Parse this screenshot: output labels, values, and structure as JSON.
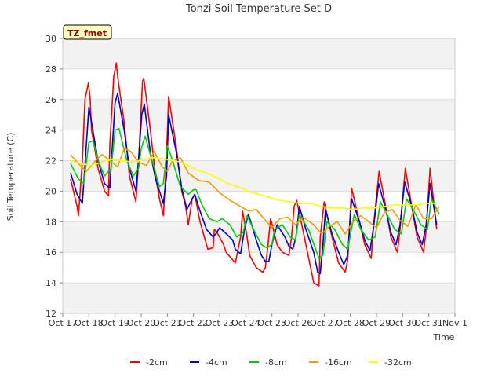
{
  "chart_data": {
    "type": "line",
    "title": "Tonzi Soil Temperature Set D",
    "xlabel": "Time",
    "ylabel": "Soil Temperature (C)",
    "badge": "TZ_fmet",
    "ylim": [
      12,
      30
    ],
    "xlim": [
      17,
      32
    ],
    "y_ticks": [
      12,
      14,
      16,
      18,
      20,
      22,
      24,
      26,
      28,
      30
    ],
    "x_ticks": [
      {
        "v": 17,
        "label": "Oct 17"
      },
      {
        "v": 18,
        "label": "Oct 18"
      },
      {
        "v": 19,
        "label": "Oct 19"
      },
      {
        "v": 20,
        "label": "Oct 20"
      },
      {
        "v": 21,
        "label": "Oct 21"
      },
      {
        "v": 22,
        "label": "Oct 22"
      },
      {
        "v": 23,
        "label": "Oct 23"
      },
      {
        "v": 24,
        "label": "Oct 24"
      },
      {
        "v": 25,
        "label": "Oct 25"
      },
      {
        "v": 26,
        "label": "Oct 26"
      },
      {
        "v": 27,
        "label": "Oct 27"
      },
      {
        "v": 28,
        "label": "Oct 28"
      },
      {
        "v": 29,
        "label": "Oct 29"
      },
      {
        "v": 30,
        "label": "Oct 30"
      },
      {
        "v": 31,
        "label": "Oct 31"
      },
      {
        "v": 32,
        "label": "Nov 1"
      }
    ],
    "grid": true,
    "legend_position": "bottom",
    "series": [
      {
        "name": "-2cm",
        "color": "#ff0000",
        "x": [
          17.3,
          17.55,
          17.6,
          17.75,
          17.85,
          17.98,
          18.05,
          18.1,
          18.35,
          18.6,
          18.75,
          18.8,
          18.95,
          19.05,
          19.1,
          19.35,
          19.55,
          19.8,
          19.9,
          20.05,
          20.1,
          20.35,
          20.55,
          20.7,
          20.85,
          20.95,
          21.05,
          21.35,
          21.55,
          21.7,
          21.8,
          21.95,
          22.05,
          22.25,
          22.5,
          22.55,
          22.75,
          22.8,
          22.9,
          23.15,
          23.25,
          23.5,
          23.6,
          23.8,
          23.88,
          24.05,
          24.15,
          24.4,
          24.65,
          24.75,
          24.85,
          24.95,
          25.2,
          25.4,
          25.65,
          25.75,
          25.85,
          25.95,
          26.3,
          26.6,
          26.8,
          26.85,
          27.0,
          27.3,
          27.55,
          27.8,
          27.9,
          28.05,
          28.35,
          28.55,
          28.8,
          28.9,
          29.1,
          29.35,
          29.55,
          29.8,
          29.9,
          30.1,
          30.35,
          30.55,
          30.8,
          30.9,
          31.05,
          31.3
        ],
        "y": [
          20.8,
          19.0,
          18.4,
          22.0,
          26.0,
          27.1,
          26.0,
          24.0,
          21.5,
          20.0,
          19.7,
          23.0,
          27.5,
          28.4,
          27.5,
          24.5,
          21.0,
          19.3,
          22.0,
          27.2,
          27.4,
          24.0,
          21.0,
          19.5,
          18.4,
          21.5,
          26.2,
          22.8,
          20.0,
          19.0,
          17.8,
          19.5,
          19.8,
          18.0,
          16.5,
          16.2,
          16.3,
          17.5,
          17.3,
          16.5,
          16.0,
          15.5,
          15.3,
          17.0,
          18.7,
          17.0,
          15.8,
          15.0,
          14.7,
          15.0,
          16.5,
          18.2,
          16.5,
          16.0,
          15.8,
          17.0,
          19.0,
          19.4,
          16.5,
          14.0,
          13.8,
          17.0,
          19.3,
          17.0,
          15.3,
          14.7,
          15.5,
          20.2,
          18.0,
          16.5,
          15.6,
          18.0,
          21.3,
          19.0,
          17.0,
          16.0,
          17.5,
          21.5,
          19.0,
          17.0,
          16.0,
          17.5,
          21.5,
          17.5
        ]
      },
      {
        "name": "-4cm",
        "color": "#0000cc",
        "x": [
          17.3,
          17.55,
          17.75,
          17.9,
          18.0,
          18.1,
          18.35,
          18.6,
          18.8,
          18.9,
          19.0,
          19.1,
          19.35,
          19.55,
          19.8,
          19.92,
          20.02,
          20.12,
          20.35,
          20.55,
          20.7,
          20.85,
          20.97,
          21.05,
          21.35,
          21.55,
          21.75,
          21.95,
          22.05,
          22.25,
          22.5,
          22.75,
          22.85,
          23.0,
          23.2,
          23.5,
          23.6,
          23.8,
          23.95,
          24.1,
          24.4,
          24.6,
          24.75,
          24.88,
          25.0,
          25.2,
          25.5,
          25.65,
          25.8,
          25.92,
          26.05,
          26.3,
          26.6,
          26.75,
          26.85,
          26.95,
          27.05,
          27.3,
          27.55,
          27.75,
          27.9,
          28.05,
          28.35,
          28.55,
          28.75,
          28.9,
          29.08,
          29.35,
          29.55,
          29.75,
          29.9,
          30.08,
          30.35,
          30.55,
          30.75,
          30.9,
          31.05,
          31.3
        ],
        "y": [
          21.2,
          19.8,
          19.2,
          23.0,
          25.5,
          24.5,
          22.0,
          20.5,
          20.2,
          23.0,
          25.8,
          26.4,
          24.0,
          21.5,
          20.0,
          22.5,
          25.0,
          25.7,
          22.5,
          20.8,
          20.0,
          19.2,
          21.0,
          25.0,
          22.5,
          20.2,
          18.8,
          19.5,
          19.8,
          18.7,
          17.5,
          17.0,
          17.2,
          17.6,
          17.3,
          16.8,
          16.2,
          15.9,
          17.5,
          18.5,
          16.8,
          15.8,
          15.4,
          15.4,
          16.5,
          17.8,
          17.0,
          16.4,
          16.2,
          17.0,
          19.0,
          17.5,
          16.0,
          14.7,
          14.6,
          16.5,
          18.8,
          17.2,
          16.0,
          15.2,
          15.8,
          19.5,
          18.0,
          16.8,
          16.1,
          17.8,
          20.5,
          18.8,
          17.3,
          16.5,
          17.8,
          20.6,
          19.0,
          17.3,
          16.5,
          17.8,
          20.5,
          17.8
        ]
      },
      {
        "name": "-8cm",
        "color": "#00cc00",
        "x": [
          17.3,
          17.6,
          17.8,
          18.0,
          18.15,
          18.4,
          18.6,
          18.85,
          19.0,
          19.15,
          19.45,
          19.7,
          19.9,
          20.0,
          20.15,
          20.5,
          20.7,
          20.85,
          21.0,
          21.2,
          21.5,
          21.8,
          22.0,
          22.1,
          22.3,
          22.6,
          22.9,
          23.1,
          23.4,
          23.65,
          23.9,
          24.05,
          24.3,
          24.6,
          24.8,
          25.0,
          25.1,
          25.4,
          25.7,
          25.9,
          26.05,
          26.4,
          26.8,
          26.95,
          27.1,
          27.4,
          27.7,
          27.9,
          28.15,
          28.4,
          28.7,
          28.95,
          29.15,
          29.4,
          29.7,
          29.95,
          30.15,
          30.4,
          30.7,
          30.95,
          31.1,
          31.4
        ],
        "y": [
          21.8,
          20.8,
          20.5,
          23.2,
          23.3,
          21.8,
          21.0,
          21.5,
          24.0,
          24.1,
          22.0,
          21.0,
          21.5,
          22.8,
          23.6,
          21.5,
          20.3,
          20.5,
          23.0,
          22.0,
          20.3,
          19.8,
          20.1,
          20.1,
          19.2,
          18.2,
          18.0,
          18.2,
          17.8,
          17.0,
          17.3,
          18.4,
          17.5,
          16.5,
          16.3,
          16.5,
          17.5,
          17.8,
          17.0,
          16.8,
          18.5,
          17.5,
          15.6,
          15.8,
          18.0,
          17.5,
          16.5,
          16.2,
          18.5,
          17.5,
          16.8,
          17.0,
          19.3,
          18.5,
          17.5,
          17.2,
          19.5,
          18.8,
          17.8,
          17.5,
          19.5,
          18.5
        ]
      },
      {
        "name": "-16cm",
        "color": "#ff9900",
        "x": [
          17.3,
          17.6,
          17.9,
          18.2,
          18.5,
          18.8,
          19.1,
          19.35,
          19.6,
          19.9,
          20.2,
          20.5,
          20.8,
          21.0,
          21.2,
          21.5,
          21.8,
          22.2,
          22.6,
          23.0,
          23.4,
          23.8,
          24.1,
          24.4,
          24.8,
          25.0,
          25.3,
          25.6,
          25.9,
          26.2,
          26.6,
          26.9,
          27.2,
          27.5,
          27.8,
          28.1,
          28.4,
          28.7,
          29.0,
          29.3,
          29.6,
          29.9,
          30.2,
          30.5,
          30.8,
          31.1,
          31.4
        ],
        "y": [
          22.4,
          21.8,
          21.3,
          21.9,
          22.4,
          22.0,
          21.6,
          22.8,
          22.6,
          21.9,
          21.7,
          22.6,
          21.6,
          21.3,
          22.0,
          22.2,
          21.2,
          20.7,
          20.6,
          19.9,
          19.4,
          19.0,
          18.7,
          18.8,
          18.0,
          17.6,
          18.2,
          18.3,
          17.8,
          18.3,
          17.8,
          17.2,
          17.7,
          18.0,
          17.2,
          18.0,
          18.4,
          18.0,
          17.6,
          18.6,
          18.8,
          18.1,
          17.7,
          19.1,
          18.2,
          18.2,
          19.0
        ]
      },
      {
        "name": "-32cm",
        "color": "#ffff00",
        "x": [
          17.3,
          17.7,
          18.1,
          18.5,
          18.9,
          19.3,
          19.7,
          20.1,
          20.5,
          20.9,
          21.3,
          21.7,
          22.1,
          22.5,
          22.9,
          23.3,
          23.7,
          24.1,
          24.5,
          24.9,
          25.3,
          25.7,
          26.1,
          26.5,
          26.9,
          27.3,
          27.7,
          28.1,
          28.5,
          28.9,
          29.3,
          29.7,
          30.1,
          30.5,
          30.9,
          31.3
        ],
        "y": [
          22.0,
          21.8,
          21.7,
          21.9,
          22.1,
          22.0,
          21.9,
          22.1,
          22.2,
          22.1,
          22.0,
          21.8,
          21.4,
          21.2,
          20.9,
          20.5,
          20.3,
          20.0,
          19.8,
          19.6,
          19.4,
          19.3,
          19.2,
          19.2,
          19.0,
          18.9,
          18.9,
          18.8,
          18.9,
          18.9,
          19.0,
          19.1,
          19.1,
          19.1,
          19.2,
          19.2
        ]
      }
    ]
  }
}
